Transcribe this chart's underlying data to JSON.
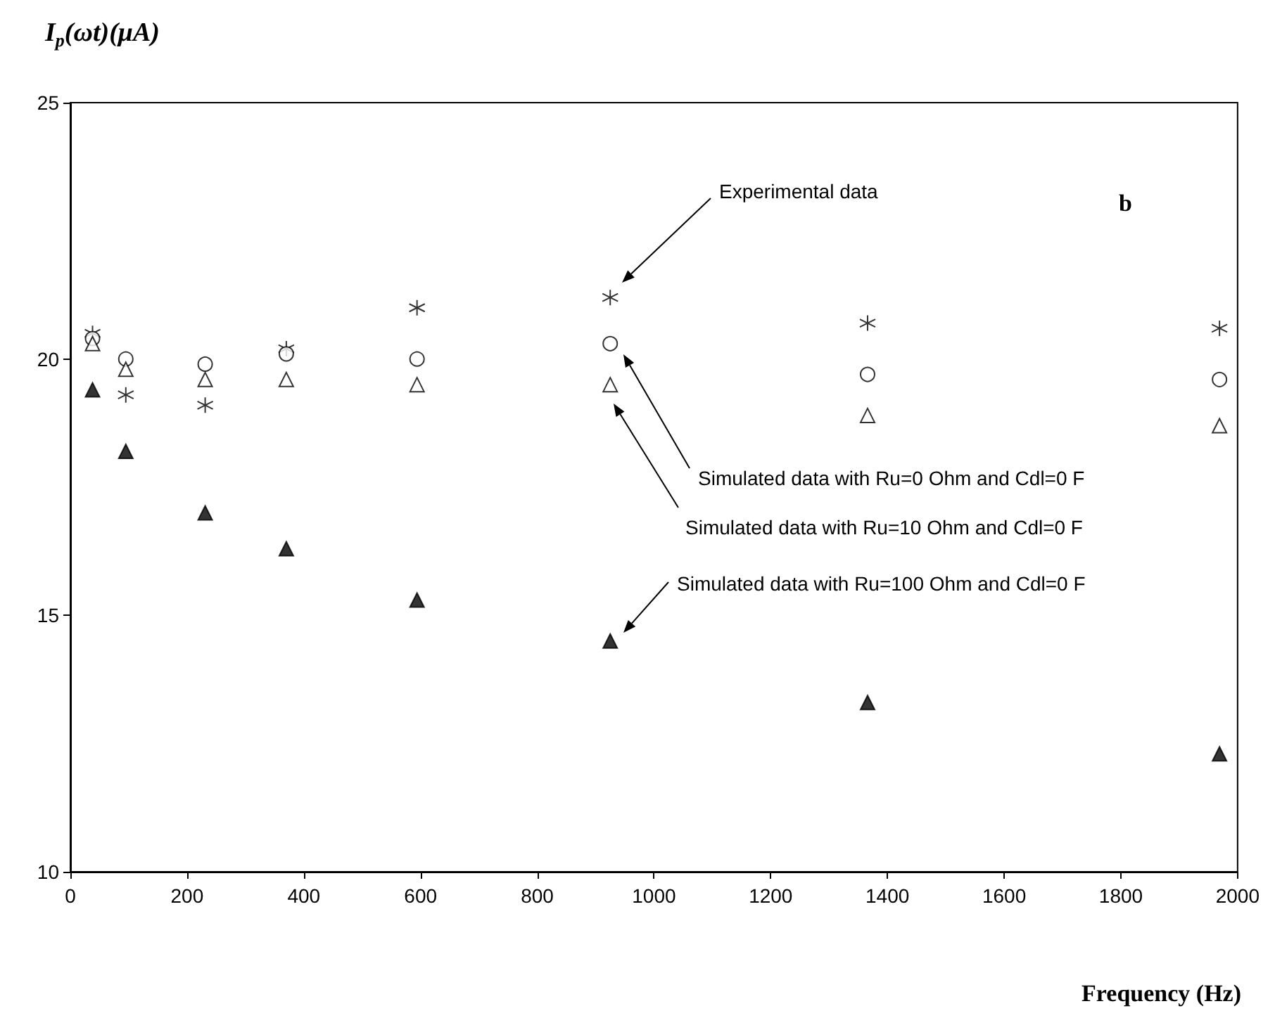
{
  "chart_data": {
    "type": "scatter",
    "xlabel": "Frequency (Hz)",
    "ylabel": "I$_{p}$(ωt)(μA)",
    "x": [
      38,
      95,
      231,
      370,
      594,
      925,
      1366,
      1969
    ],
    "series": [
      {
        "color": "#000000",
        "marker": "cross",
        "values": [
          20.5,
          19.3,
          19.1,
          20.2,
          21.0,
          21.2,
          20.7,
          20.6
        ]
      },
      {
        "color": "#ffffff",
        "marker": "circle",
        "values": [
          20.4,
          20.0,
          19.9,
          20.1,
          20.0,
          20.3,
          19.7,
          19.6
        ]
      },
      {
        "color": "#ffffff",
        "marker": "triangle",
        "values": [
          20.3,
          19.8,
          19.6,
          19.6,
          19.5,
          19.5,
          18.9,
          18.7
        ]
      },
      {
        "color": "#000000",
        "marker": "triangle",
        "values": [
          19.4,
          18.2,
          17.0,
          16.3,
          15.3,
          14.5,
          13.3,
          12.3
        ]
      }
    ],
    "annotations": [
      "b",
      "Experimental data",
      "Simulated data with Ru=0 Ohm and Cdl=0 F",
      "Simulated data with Ru=10 Ohm and Cdl=0 F",
      "Simulated data with Ru=100 Ohm and Cdl=0 F"
    ],
    "xlim": [
      0,
      2000
    ],
    "xticks": [
      0,
      200,
      400,
      600,
      800,
      1000,
      1200,
      1400,
      1600,
      1800,
      2000
    ],
    "ylim": [
      10,
      25
    ],
    "yticks": [
      10,
      15,
      20,
      25
    ],
    "grid": false
  }
}
